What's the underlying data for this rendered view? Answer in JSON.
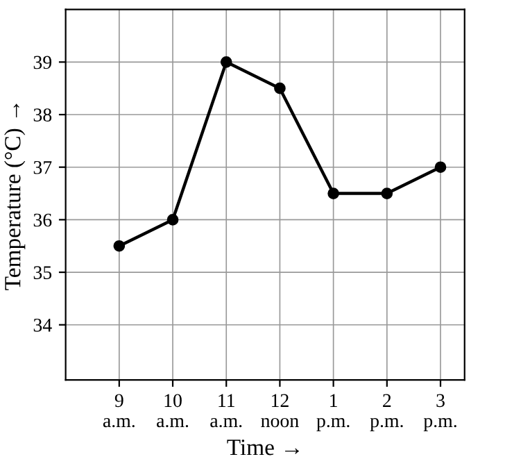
{
  "chart_data": {
    "type": "line",
    "xlabel": "Time →",
    "ylabel": "Temperature (°C) →",
    "categories": [
      "9\na.m.",
      "10\na.m.",
      "11\na.m.",
      "12\nnoon",
      "1\np.m.",
      "2\np.m.",
      "3\np.m."
    ],
    "series": [
      {
        "color": "#000000",
        "values": [
          35.5,
          36,
          39,
          38.5,
          36.5,
          36.5,
          37
        ]
      }
    ],
    "ylim": [
      32.95,
      40
    ],
    "yticks": [
      34,
      35,
      36,
      37,
      38,
      39
    ],
    "grid": true,
    "marker": "circle",
    "line_style": "solid",
    "legend": false
  }
}
